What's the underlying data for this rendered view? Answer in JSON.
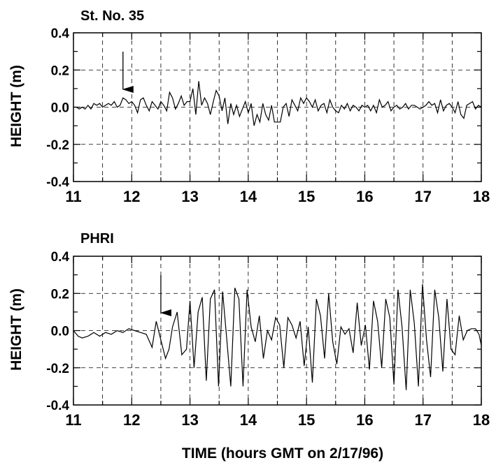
{
  "chart_data": [
    {
      "type": "line",
      "title": "St. No. 35",
      "xlabel": "",
      "ylabel": "HEIGHT (m)",
      "xlim": [
        11,
        18
      ],
      "ylim": [
        -0.4,
        0.4
      ],
      "x_ticks": [
        "11",
        "12",
        "13",
        "14",
        "15",
        "16",
        "17",
        "18"
      ],
      "y_ticks": [
        "0.4",
        "0.2",
        "0.0",
        "-0.2",
        "-0.4"
      ],
      "grid": true,
      "arrow_at_x": 11.85,
      "series": [
        {
          "x": [
            11.0,
            11.05,
            11.1,
            11.15,
            11.2,
            11.25,
            11.3,
            11.35,
            11.4,
            11.45,
            11.5,
            11.55,
            11.6,
            11.65,
            11.7,
            11.75,
            11.8,
            11.85,
            11.9,
            11.95,
            12.0,
            12.05,
            12.1,
            12.15,
            12.2,
            12.25,
            12.3,
            12.35,
            12.4,
            12.45,
            12.5,
            12.55,
            12.6,
            12.65,
            12.7,
            12.75,
            12.8,
            12.85,
            12.9,
            12.95,
            13.0,
            13.05,
            13.1,
            13.15,
            13.2,
            13.25,
            13.3,
            13.35,
            13.4,
            13.45,
            13.5,
            13.55,
            13.6,
            13.65,
            13.7,
            13.75,
            13.8,
            13.85,
            13.9,
            13.95,
            14.0,
            14.05,
            14.1,
            14.15,
            14.2,
            14.25,
            14.3,
            14.35,
            14.4,
            14.45,
            14.5,
            14.55,
            14.6,
            14.65,
            14.7,
            14.75,
            14.8,
            14.85,
            14.9,
            14.95,
            15.0,
            15.05,
            15.1,
            15.15,
            15.2,
            15.25,
            15.3,
            15.35,
            15.4,
            15.45,
            15.5,
            15.55,
            15.6,
            15.65,
            15.7,
            15.75,
            15.8,
            15.85,
            15.9,
            15.95,
            16.0,
            16.05,
            16.1,
            16.15,
            16.2,
            16.25,
            16.3,
            16.35,
            16.4,
            16.45,
            16.5,
            16.55,
            16.6,
            16.65,
            16.7,
            16.75,
            16.8,
            16.85,
            16.9,
            16.95,
            17.0,
            17.05,
            17.1,
            17.15,
            17.2,
            17.25,
            17.3,
            17.35,
            17.4,
            17.45,
            17.5,
            17.55,
            17.6,
            17.65,
            17.7,
            17.75,
            17.8,
            17.85,
            17.9,
            17.95,
            18.0
          ],
          "values": [
            0.0,
            0.0,
            -0.01,
            0.0,
            -0.01,
            0.01,
            -0.01,
            0.02,
            0.01,
            0.02,
            0.0,
            0.01,
            0.02,
            0.01,
            0.03,
            0.0,
            0.01,
            0.05,
            0.04,
            0.02,
            0.03,
            0.01,
            -0.03,
            0.04,
            0.05,
            0.01,
            -0.02,
            0.03,
            0.01,
            -0.01,
            0.03,
            0.01,
            -0.02,
            0.08,
            0.05,
            -0.01,
            0.02,
            0.06,
            0.01,
            0.03,
            0.03,
            0.1,
            -0.04,
            0.14,
            0.01,
            0.05,
            0.02,
            -0.04,
            0.03,
            0.09,
            0.06,
            -0.02,
            0.05,
            -0.09,
            0.02,
            -0.04,
            0.01,
            -0.05,
            -0.01,
            0.03,
            -0.03,
            0.02,
            -0.1,
            -0.04,
            -0.08,
            0.02,
            -0.04,
            -0.07,
            0.01,
            -0.08,
            -0.08,
            -0.08,
            0.0,
            0.02,
            -0.05,
            0.04,
            0.01,
            -0.02,
            0.05,
            0.02,
            0.05,
            0.03,
            0.0,
            0.04,
            -0.02,
            0.01,
            0.02,
            -0.03,
            0.04,
            0.0,
            -0.02,
            -0.03,
            0.01,
            -0.01,
            0.02,
            -0.02,
            0.01,
            0.0,
            -0.02,
            0.01,
            0.0,
            0.01,
            -0.02,
            0.01,
            -0.03,
            0.04,
            0.0,
            0.01,
            0.03,
            -0.02,
            0.0,
            0.01,
            -0.01,
            0.0,
            0.02,
            -0.01,
            0.01,
            0.01,
            0.0,
            -0.01,
            0.0,
            0.01,
            0.03,
            0.01,
            0.02,
            -0.03,
            0.04,
            -0.02,
            0.01,
            0.02,
            0.0,
            -0.03,
            0.03,
            -0.04,
            -0.06,
            0.01,
            0.02,
            0.03,
            -0.01,
            0.01,
            0.0
          ]
        }
      ]
    },
    {
      "type": "line",
      "title": "PHRI",
      "xlabel": "TIME (hours GMT on 2/17/96)",
      "ylabel": "HEIGHT (m)",
      "xlim": [
        11,
        18
      ],
      "ylim": [
        -0.4,
        0.4
      ],
      "x_ticks": [
        "11",
        "12",
        "13",
        "14",
        "15",
        "16",
        "17",
        "18"
      ],
      "y_ticks": [
        "0.4",
        "0.2",
        "0.0",
        "-0.2",
        "-0.4"
      ],
      "grid": true,
      "arrow_at_x": 12.5,
      "series": [
        {
          "x": [
            11.0,
            11.08,
            11.15,
            11.25,
            11.35,
            11.45,
            11.55,
            11.65,
            11.75,
            11.85,
            11.95,
            12.05,
            12.15,
            12.25,
            12.35,
            12.42,
            12.5,
            12.58,
            12.64,
            12.7,
            12.78,
            12.86,
            12.94,
            13.0,
            13.07,
            13.14,
            13.21,
            13.28,
            13.35,
            13.42,
            13.49,
            13.56,
            13.63,
            13.7,
            13.77,
            13.84,
            13.91,
            13.98,
            14.05,
            14.12,
            14.19,
            14.26,
            14.33,
            14.4,
            14.47,
            14.54,
            14.61,
            14.68,
            14.75,
            14.82,
            14.89,
            14.96,
            15.03,
            15.1,
            15.17,
            15.24,
            15.31,
            15.38,
            15.45,
            15.52,
            15.59,
            15.66,
            15.73,
            15.8,
            15.87,
            15.94,
            16.01,
            16.08,
            16.15,
            16.22,
            16.29,
            16.36,
            16.43,
            16.5,
            16.57,
            16.64,
            16.71,
            16.78,
            16.85,
            16.92,
            16.99,
            17.06,
            17.13,
            17.2,
            17.27,
            17.34,
            17.41,
            17.48,
            17.55,
            17.62,
            17.69,
            17.76,
            17.83,
            17.9,
            17.96,
            18.0
          ],
          "values": [
            0.0,
            -0.03,
            -0.04,
            -0.03,
            -0.01,
            -0.03,
            -0.01,
            -0.02,
            0.0,
            -0.01,
            0.01,
            0.0,
            -0.01,
            -0.02,
            -0.09,
            0.05,
            -0.05,
            -0.15,
            -0.1,
            0.02,
            0.1,
            -0.13,
            -0.1,
            0.16,
            -0.2,
            0.1,
            0.18,
            -0.27,
            0.17,
            0.22,
            -0.3,
            0.21,
            -0.04,
            -0.3,
            0.23,
            0.17,
            -0.3,
            0.22,
            0.02,
            -0.06,
            0.08,
            -0.15,
            0.0,
            -0.05,
            0.07,
            0.03,
            -0.2,
            0.07,
            0.03,
            -0.04,
            0.05,
            -0.19,
            0.02,
            -0.28,
            0.17,
            0.08,
            -0.15,
            0.2,
            -0.06,
            -0.18,
            0.02,
            -0.02,
            0.01,
            -0.12,
            0.15,
            -0.08,
            0.03,
            -0.21,
            0.16,
            0.05,
            -0.2,
            0.17,
            0.07,
            -0.29,
            0.22,
            0.02,
            -0.32,
            0.22,
            0.04,
            -0.3,
            0.25,
            -0.05,
            -0.25,
            0.22,
            0.07,
            -0.22,
            0.17,
            -0.1,
            -0.13,
            0.08,
            -0.05,
            0.0,
            0.01,
            0.01,
            -0.02,
            -0.08
          ]
        }
      ]
    }
  ]
}
